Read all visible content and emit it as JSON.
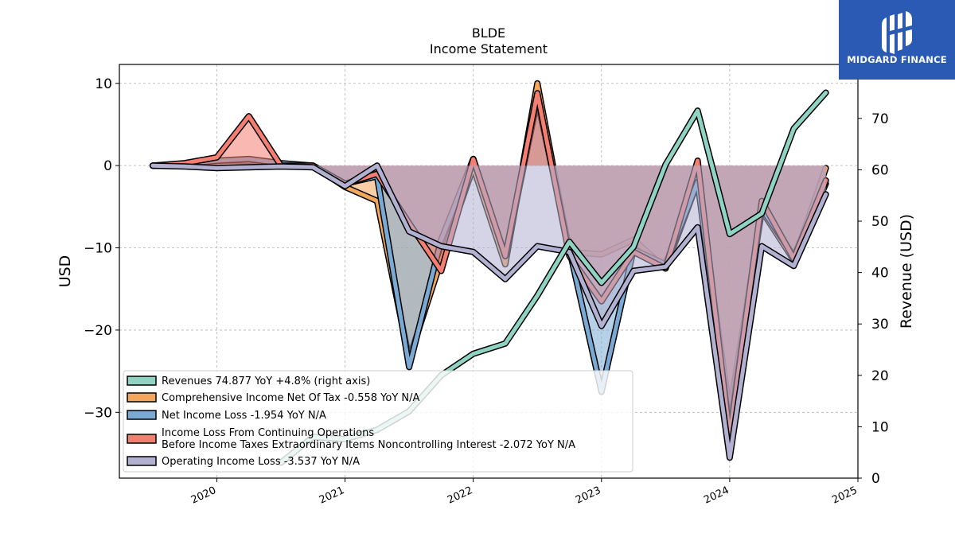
{
  "chart_data": {
    "type": "line",
    "title": "BLDE",
    "subtitle": "Income Statement",
    "ylabel": "USD",
    "ylabel_right": "Revenue (USD)",
    "ylim": [
      -38,
      12.3
    ],
    "ylim_right": [
      0,
      80.5
    ],
    "xlim": [
      2019.24,
      2025.0
    ],
    "yticks": [
      10,
      0,
      -10,
      -20,
      -30
    ],
    "yticks_right": [
      0,
      10,
      20,
      30,
      40,
      50,
      60,
      70
    ],
    "xticks": [
      2020,
      2021,
      2022,
      2023,
      2024,
      2025
    ],
    "grid": true,
    "legend_position": "lower-left",
    "series": [
      {
        "name": "Revenues  74.877 YoY +4.8% (right axis)",
        "color": "#8fd4c3",
        "axis": "right",
        "x": [
          2020.5,
          2020.75,
          2021.0,
          2021.25,
          2021.5,
          2021.75,
          2022.0,
          2022.25,
          2022.5,
          2022.75,
          2023.0,
          2023.25,
          2023.5,
          2023.75,
          2024.0,
          2024.25,
          2024.5,
          2024.75
        ],
        "values": [
          3.0,
          8.0,
          7.6,
          9.4,
          13.0,
          20.0,
          24.2,
          26.2,
          35.5,
          46.0,
          38.0,
          45.0,
          61.0,
          71.5,
          47.5,
          51.5,
          68.0,
          75.0
        ]
      },
      {
        "name": "Comprehensive Income Net Of Tax  -0.558 YoY N/A",
        "color": "#f4a65c",
        "axis": "left",
        "x": [
          2019.5,
          2019.75,
          2020.0,
          2020.25,
          2020.5,
          2020.75,
          2021.0,
          2021.25,
          2021.5,
          2021.75,
          2022.0,
          2022.25,
          2022.5,
          2022.75,
          2023.0,
          2023.25,
          2023.5,
          2023.75,
          2024.0,
          2024.25,
          2024.5,
          2024.75
        ],
        "values": [
          0.0,
          0.0,
          0.0,
          0.0,
          0.0,
          0.0,
          -2.6,
          -4.3,
          -23.5,
          -11.5,
          -0.2,
          -12.0,
          10.0,
          -10.5,
          -10.8,
          -9.0,
          -12.5,
          -2.0,
          -30.0,
          -5.5,
          -11.5,
          -0.3
        ]
      },
      {
        "name": "Net Income Loss  -1.954 YoY N/A",
        "color": "#7aaad4",
        "axis": "left",
        "x": [
          2019.5,
          2019.75,
          2020.0,
          2020.25,
          2020.5,
          2020.75,
          2021.0,
          2021.25,
          2021.5,
          2021.75,
          2022.0,
          2022.25,
          2022.5,
          2022.75,
          2023.0,
          2023.25,
          2023.5,
          2023.75,
          2024.0,
          2024.25,
          2024.5,
          2024.75
        ],
        "values": [
          0.0,
          0.2,
          0.6,
          0.8,
          0.3,
          0.0,
          -2.2,
          -1.3,
          -24.5,
          -9.0,
          0.8,
          -11.0,
          8.0,
          -10.2,
          -27.5,
          -10.2,
          -12.0,
          -2.0,
          -32.0,
          -5.2,
          -11.0,
          -2.2
        ]
      },
      {
        "name": "Income Loss From Continuing Operations Before Income Taxes Extraordinary Items Noncontrolling Interest  -2.072 YoY N/A",
        "color": "#f47e72",
        "axis": "left",
        "x": [
          2019.5,
          2019.75,
          2020.0,
          2020.25,
          2020.5,
          2020.75,
          2021.0,
          2021.25,
          2021.5,
          2021.75,
          2022.0,
          2022.25,
          2022.5,
          2022.75,
          2023.0,
          2023.25,
          2023.5,
          2023.75,
          2024.0,
          2024.25,
          2024.5,
          2024.75
        ],
        "values": [
          0.0,
          0.3,
          1.0,
          6.0,
          0.0,
          0.0,
          -2.2,
          -1.0,
          -7.0,
          -12.8,
          0.8,
          -11.0,
          8.8,
          -11.0,
          -16.5,
          -10.5,
          -12.5,
          0.6,
          -33.0,
          -4.3,
          -11.3,
          -1.8
        ]
      },
      {
        "name": "Operating Income Loss  -3.537 YoY N/A",
        "color": "#b2b1d2",
        "axis": "left",
        "x": [
          2019.5,
          2019.75,
          2020.0,
          2020.25,
          2020.5,
          2020.75,
          2021.0,
          2021.25,
          2021.5,
          2021.75,
          2022.0,
          2022.25,
          2022.5,
          2022.75,
          2023.0,
          2023.25,
          2023.5,
          2023.75,
          2024.0,
          2024.25,
          2024.5,
          2024.75
        ],
        "values": [
          0.0,
          -0.1,
          -0.3,
          -0.2,
          -0.1,
          -0.2,
          -2.5,
          0.0,
          -8.0,
          -9.8,
          -10.5,
          -13.8,
          -9.8,
          -10.5,
          -19.5,
          -12.8,
          -12.3,
          -7.5,
          -35.5,
          -9.8,
          -12.2,
          -3.5
        ]
      }
    ]
  },
  "logo": {
    "text": "MIDGARD FINANCE",
    "icon": "midgard-logo-icon",
    "color": "#2a5ab4"
  }
}
